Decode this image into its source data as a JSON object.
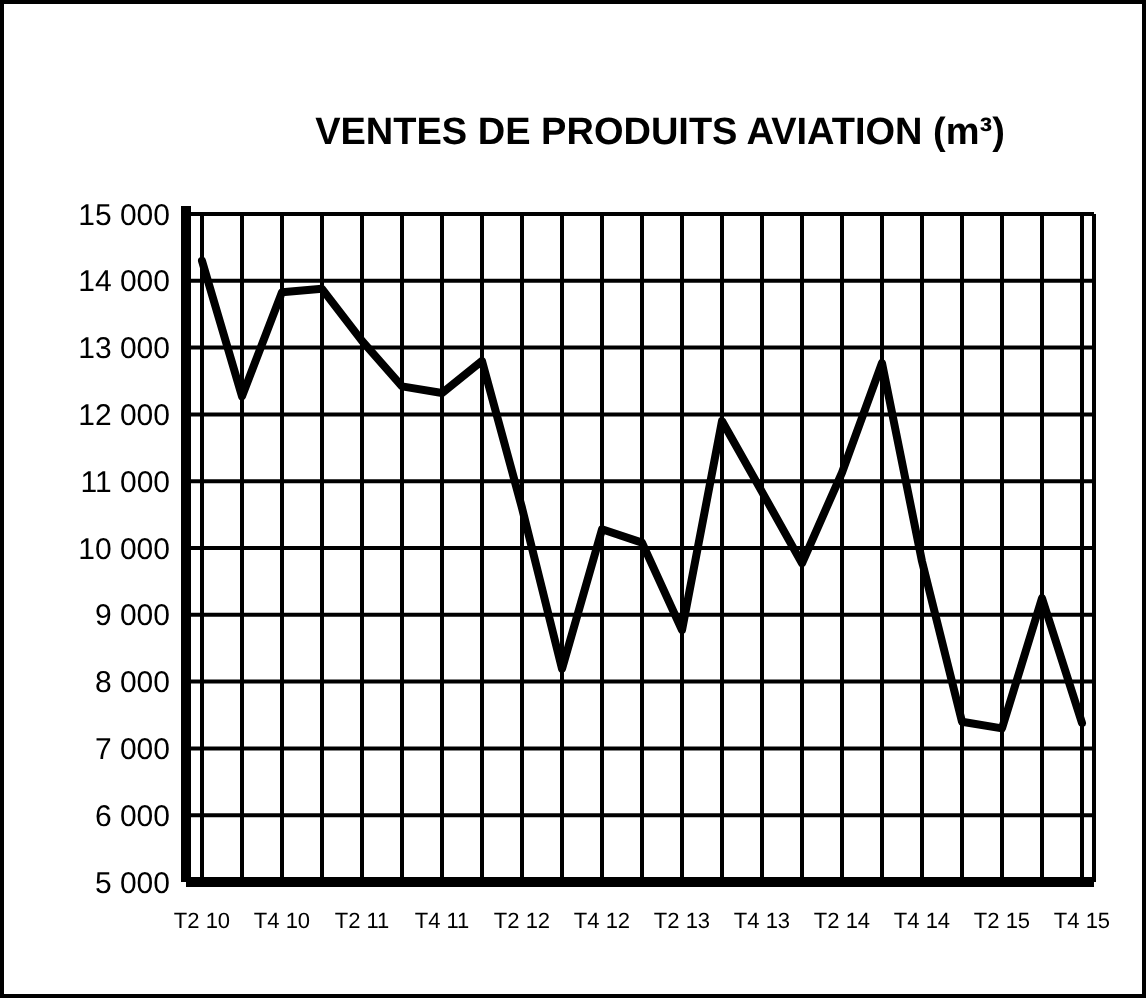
{
  "chart_data": {
    "type": "line",
    "title": "VENTES DE PRODUITS AVIATION (m³)",
    "categories": [
      "T2 10",
      null,
      "T4 10",
      null,
      "T2 11",
      null,
      "T4 11",
      null,
      "T2 12",
      null,
      "T4 12",
      null,
      "T2 13",
      null,
      "T4 13",
      null,
      "T2 14",
      null,
      "T4 14",
      null,
      "T2 15",
      null,
      "T4 15"
    ],
    "series": [
      {
        "color": "#000000",
        "values": [
          14300,
          12270,
          13830,
          13880,
          13100,
          12420,
          12320,
          12800,
          10600,
          8190,
          10280,
          10080,
          8770,
          11900,
          10840,
          9770,
          11130,
          12770,
          9800,
          7400,
          7300,
          9250,
          7380
        ]
      }
    ],
    "ylim": [
      5000,
      15000
    ],
    "yticks": [
      {
        "value": 5000,
        "label": "5 000"
      },
      {
        "value": 6000,
        "label": "6 000"
      },
      {
        "value": 7000,
        "label": "7 000"
      },
      {
        "value": 8000,
        "label": "8 000"
      },
      {
        "value": 9000,
        "label": "9 000"
      },
      {
        "value": 10000,
        "label": "10 000"
      },
      {
        "value": 11000,
        "label": "11 000"
      },
      {
        "value": 12000,
        "label": "12 000"
      },
      {
        "value": 13000,
        "label": "13 000"
      },
      {
        "value": 14000,
        "label": "14 000"
      },
      {
        "value": 15000,
        "label": "15 000"
      }
    ],
    "grid": true,
    "marker": "none",
    "line_style": "solid"
  }
}
